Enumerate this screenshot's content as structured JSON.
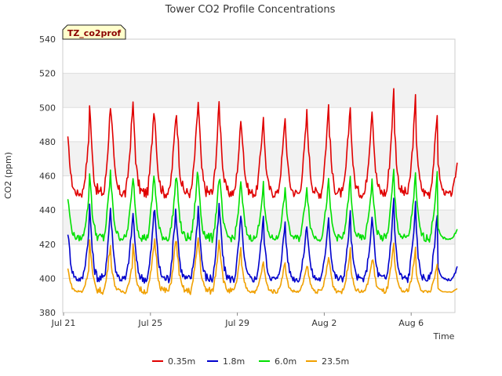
{
  "chart_data": {
    "type": "line",
    "title": "Tower CO2 Profile Concentrations",
    "site_badge": "TZ_co2prof",
    "xlabel": "Time",
    "ylabel": "CO2 (ppm)",
    "ylim": [
      380,
      540
    ],
    "yticks": [
      380,
      400,
      420,
      440,
      460,
      480,
      500,
      520,
      540
    ],
    "xlim_days": [
      0,
      18
    ],
    "xticks": [
      {
        "day": 0,
        "label": "Jul 21"
      },
      {
        "day": 4,
        "label": "Jul 25"
      },
      {
        "day": 8,
        "label": "Jul 29"
      },
      {
        "day": 12,
        "label": "Aug 2"
      },
      {
        "day": 16,
        "label": "Aug 6"
      }
    ],
    "grid": true,
    "banded_background": true,
    "legend_position": "bottom",
    "series": [
      {
        "name": "0.35m",
        "color": "#e00000",
        "base": 449,
        "peaks": [
          487,
          513,
          505,
          510,
          503,
          505,
          513,
          500,
          496,
          495,
          497,
          502,
          503,
          500,
          510,
          505,
          497,
          476
        ]
      },
      {
        "name": "1.8m",
        "color": "#0000cc",
        "base": 399,
        "peaks": [
          432,
          450,
          438,
          445,
          448,
          440,
          450,
          443,
          436,
          433,
          432,
          437,
          438,
          434,
          446,
          443,
          439,
          410
        ]
      },
      {
        "name": "6.0m",
        "color": "#00e000",
        "base": 423,
        "peaks": [
          451,
          470,
          458,
          467,
          462,
          468,
          466,
          462,
          455,
          452,
          454,
          457,
          459,
          457,
          463,
          460,
          461,
          432
        ]
      },
      {
        "name": "23.5m",
        "color": "#f0a000",
        "base": 392,
        "peaks": [
          408,
          427,
          410,
          424,
          428,
          425,
          429,
          422,
          410,
          410,
          407,
          412,
          418,
          410,
          420,
          417,
          408,
          395
        ]
      }
    ]
  }
}
